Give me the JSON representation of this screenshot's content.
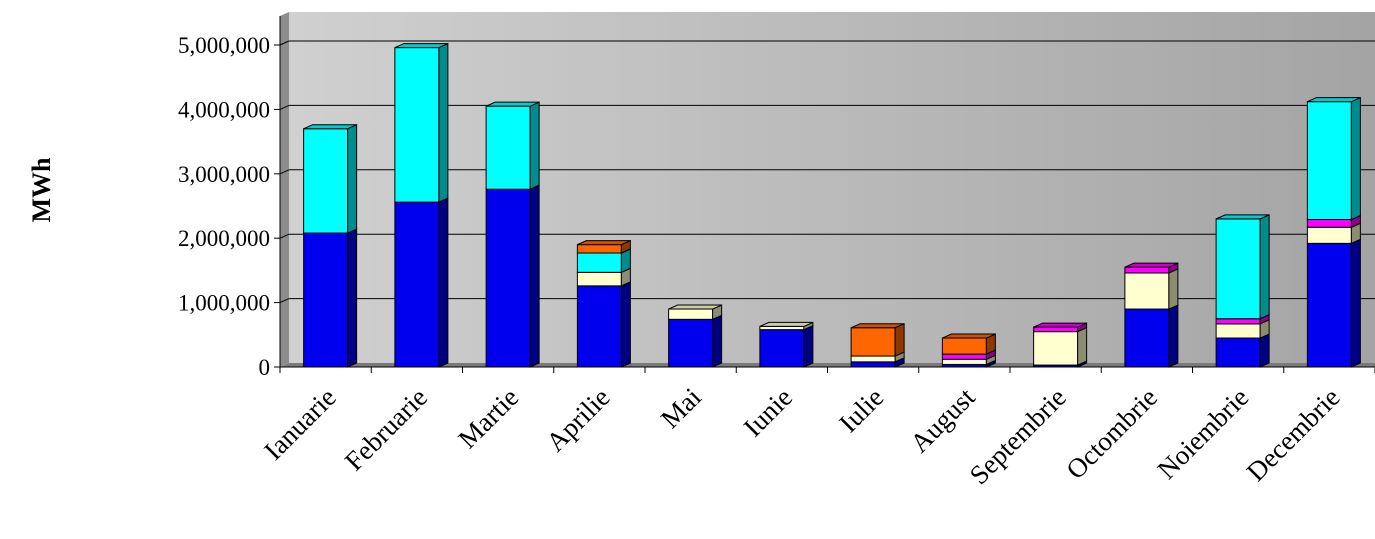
{
  "chart_data": {
    "type": "bar",
    "stacked": true,
    "style": "3d",
    "title": "",
    "xlabel": "",
    "ylabel": "MWh",
    "ylim": [
      0,
      5000000
    ],
    "yticks": [
      0,
      1000000,
      2000000,
      3000000,
      4000000,
      5000000
    ],
    "ytick_labels": [
      "0",
      "1,000,000",
      "2,000,000",
      "3,000,000",
      "4,000,000",
      "5,000,000"
    ],
    "grid": true,
    "legend": "none",
    "categories": [
      "Ianuarie",
      "Februarie",
      "Martie",
      "Aprilie",
      "Mai",
      "Iunie",
      "Iulie",
      "August",
      "Septembrie",
      "Octombrie",
      "Noiembrie",
      "Decembrie"
    ],
    "series": [
      {
        "color": "#0000ee",
        "values": [
          2080000,
          2560000,
          2760000,
          1260000,
          740000,
          580000,
          80000,
          40000,
          30000,
          900000,
          450000,
          1920000
        ]
      },
      {
        "color": "#ffffd0",
        "values": [
          0,
          0,
          0,
          210000,
          160000,
          50000,
          90000,
          80000,
          520000,
          560000,
          220000,
          250000
        ]
      },
      {
        "color": "#ff00ff",
        "values": [
          0,
          0,
          0,
          0,
          0,
          0,
          0,
          80000,
          70000,
          90000,
          80000,
          120000
        ]
      },
      {
        "color": "#00ffff",
        "values": [
          1620000,
          2400000,
          1290000,
          300000,
          0,
          0,
          0,
          0,
          0,
          0,
          1550000,
          1830000
        ]
      },
      {
        "color": "#ff6600",
        "values": [
          0,
          0,
          0,
          130000,
          0,
          0,
          440000,
          250000,
          0,
          0,
          0,
          0
        ]
      }
    ]
  }
}
